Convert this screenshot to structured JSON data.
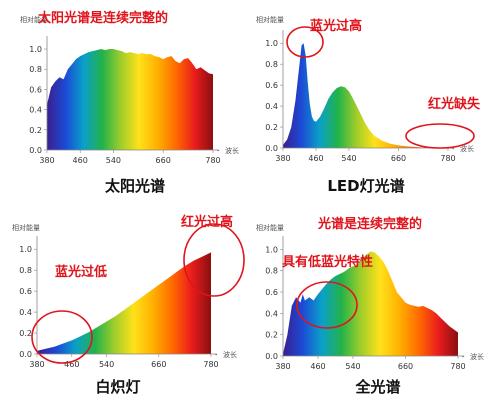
{
  "colors": {
    "annotation": "#e0141c",
    "axis": "#888888",
    "spectrum": [
      "#3a1e8f",
      "#1c4ad6",
      "#0aa0c8",
      "#22b24a",
      "#9fcd2a",
      "#ffe11a",
      "#ffb000",
      "#ff6a00",
      "#ea1c1c",
      "#8a0f10"
    ]
  },
  "chart_data": [
    {
      "id": "sun",
      "type": "area",
      "title": "太阳光谱",
      "ylabel": "相对能量",
      "xlabel": "波长",
      "xticks": [
        "380",
        "460",
        "540",
        "660",
        "780"
      ],
      "yticks": [
        "0.0",
        "0.2",
        "0.4",
        "0.6",
        "0.8",
        "1.0"
      ],
      "xlim": [
        380,
        780
      ],
      "ylim": [
        0,
        1.05
      ],
      "x": [
        380,
        390,
        400,
        410,
        420,
        430,
        440,
        450,
        460,
        470,
        480,
        490,
        500,
        510,
        520,
        530,
        540,
        550,
        560,
        570,
        580,
        590,
        600,
        610,
        620,
        630,
        640,
        650,
        660,
        670,
        680,
        690,
        700,
        710,
        720,
        730,
        740,
        750,
        760,
        770,
        780
      ],
      "values": [
        0.45,
        0.62,
        0.68,
        0.72,
        0.7,
        0.8,
        0.85,
        0.9,
        0.93,
        0.95,
        0.97,
        0.98,
        0.99,
        1.0,
        0.99,
        1.0,
        1.0,
        0.99,
        0.98,
        0.96,
        0.97,
        0.96,
        0.95,
        0.96,
        0.95,
        0.95,
        0.93,
        0.92,
        0.9,
        0.92,
        0.93,
        0.88,
        0.86,
        0.9,
        0.91,
        0.86,
        0.8,
        0.82,
        0.79,
        0.76,
        0.75
      ],
      "annotations": [
        {
          "text": "太阳光谱是连续完整的"
        }
      ]
    },
    {
      "id": "led",
      "type": "area",
      "title": "LED灯光谱",
      "ylabel": "相对能量",
      "xlabel": "波长",
      "xticks": [
        "380",
        "460",
        "540",
        "660",
        "780"
      ],
      "yticks": [
        "0.0",
        "0.2",
        "0.4",
        "0.6",
        "0.8",
        "1.0"
      ],
      "xlim": [
        380,
        780
      ],
      "ylim": [
        0,
        1.05
      ],
      "x": [
        380,
        390,
        400,
        410,
        420,
        425,
        430,
        435,
        440,
        445,
        450,
        455,
        460,
        470,
        480,
        490,
        500,
        510,
        520,
        530,
        540,
        550,
        560,
        570,
        580,
        590,
        600,
        620,
        640,
        660,
        680,
        700,
        720,
        740,
        760,
        780
      ],
      "values": [
        0.03,
        0.08,
        0.2,
        0.45,
        0.8,
        0.98,
        1.0,
        0.88,
        0.62,
        0.42,
        0.3,
        0.26,
        0.25,
        0.3,
        0.38,
        0.47,
        0.53,
        0.57,
        0.59,
        0.58,
        0.54,
        0.47,
        0.39,
        0.31,
        0.23,
        0.17,
        0.12,
        0.07,
        0.04,
        0.025,
        0.015,
        0.01,
        0.005,
        0.003,
        0.001,
        0.0
      ],
      "annotations": [
        {
          "text": "蓝光过高"
        },
        {
          "text": "红光缺失"
        }
      ]
    },
    {
      "id": "incandescent",
      "type": "area",
      "title": "白炽灯",
      "ylabel": "相对能量",
      "xlabel": "波长",
      "xticks": [
        "380",
        "460",
        "540",
        "660",
        "780"
      ],
      "yticks": [
        "0.0",
        "0.2",
        "0.4",
        "0.6",
        "0.8",
        "1.0"
      ],
      "xlim": [
        380,
        780
      ],
      "ylim": [
        0,
        1.05
      ],
      "x": [
        380,
        400,
        420,
        440,
        460,
        480,
        500,
        520,
        540,
        560,
        580,
        600,
        620,
        640,
        660,
        680,
        700,
        720,
        740,
        760,
        780
      ],
      "values": [
        0.03,
        0.05,
        0.07,
        0.1,
        0.13,
        0.17,
        0.21,
        0.26,
        0.31,
        0.36,
        0.42,
        0.48,
        0.54,
        0.6,
        0.66,
        0.72,
        0.78,
        0.84,
        0.89,
        0.93,
        0.97
      ],
      "annotations": [
        {
          "text": "红光过高"
        },
        {
          "text": "蓝光过低"
        }
      ]
    },
    {
      "id": "full",
      "type": "area",
      "title": "全光谱",
      "ylabel": "相对能量",
      "xlabel": "波长",
      "xticks": [
        "380",
        "460",
        "540",
        "660",
        "780"
      ],
      "yticks": [
        "0.0",
        "0.2",
        "0.4",
        "0.6",
        "0.8",
        "1.0"
      ],
      "xlim": [
        380,
        780
      ],
      "ylim": [
        0,
        1.05
      ],
      "x": [
        380,
        390,
        400,
        410,
        420,
        425,
        430,
        440,
        450,
        460,
        470,
        480,
        490,
        500,
        510,
        520,
        530,
        540,
        550,
        560,
        570,
        580,
        590,
        600,
        610,
        620,
        630,
        640,
        650,
        660,
        670,
        680,
        690,
        700,
        710,
        720,
        730,
        740,
        760,
        780
      ],
      "values": [
        0.02,
        0.2,
        0.47,
        0.55,
        0.5,
        0.58,
        0.52,
        0.55,
        0.52,
        0.58,
        0.63,
        0.68,
        0.72,
        0.75,
        0.77,
        0.79,
        0.82,
        0.84,
        0.86,
        0.9,
        0.95,
        0.98,
        0.97,
        0.93,
        0.88,
        0.8,
        0.7,
        0.6,
        0.55,
        0.5,
        0.48,
        0.47,
        0.46,
        0.47,
        0.45,
        0.43,
        0.4,
        0.36,
        0.28,
        0.22
      ],
      "annotations": [
        {
          "text": "光谱是连续完整的"
        },
        {
          "text": "具有低蓝光特性"
        }
      ]
    }
  ]
}
